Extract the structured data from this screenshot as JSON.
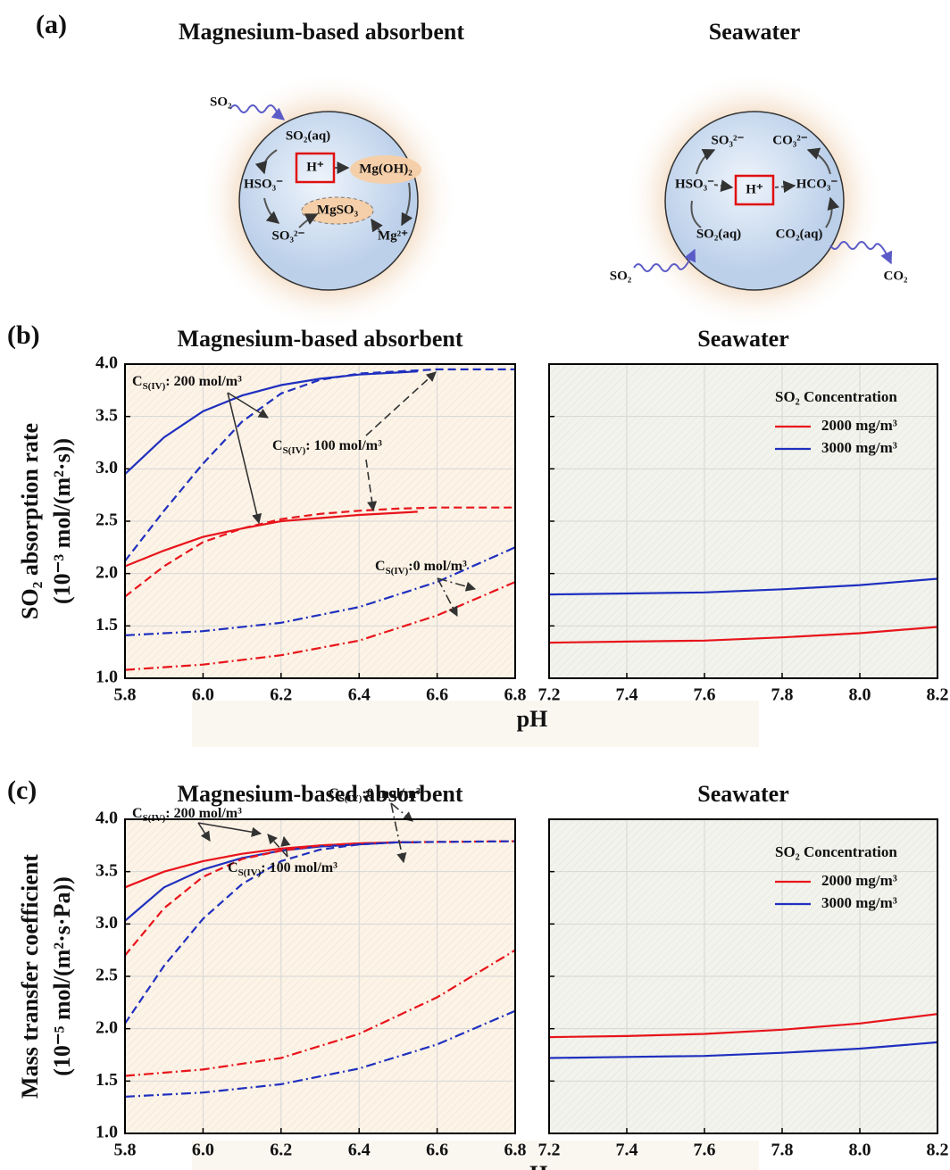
{
  "panel_a": {
    "label": "(a)",
    "left": {
      "title": "Magnesium-based absorbent",
      "labels": [
        "SO₂",
        "SO₂(aq)",
        "H⁺",
        "Mg(OH)₂",
        "HSO₃⁻",
        "MgSO₃",
        "SO₃²⁻",
        "Mg²⁺"
      ]
    },
    "right": {
      "title": "Seawater",
      "labels": [
        "SO₃²⁻",
        "CO₃²⁻",
        "HSO₃⁻",
        "H⁺",
        "HCO₃⁻",
        "SO₂(aq)",
        "CO₂(aq)",
        "SO₂",
        "CO₂"
      ]
    }
  },
  "chart_data": [
    {
      "type": "line",
      "panel_label": "(b)",
      "title": "Magnesium-based absorbent",
      "ylabel": [
        "SO₂ absorption rate",
        "(10⁻³ mol/(m²·s))"
      ],
      "xlabel": "pH",
      "grid": true,
      "background": "#fdf3e6",
      "xlim": [
        5.8,
        6.8
      ],
      "xticks": [
        5.8,
        {
          "value": 6,
          "label": "6.0"
        },
        6.2,
        6.4,
        6.6,
        6.8
      ],
      "ylim": [
        1,
        4
      ],
      "yticks": [
        {
          "value": 1,
          "label": "1.0"
        },
        1.5,
        {
          "value": 2,
          "label": "2.0"
        },
        2.5,
        {
          "value": 3,
          "label": "3.0"
        },
        3.5,
        {
          "value": 4,
          "label": "4.0"
        }
      ],
      "annotations": [
        {
          "symbol": "C",
          "subscript": "S(IV)",
          "text": ": 200 mol/m³"
        },
        {
          "symbol": "C",
          "subscript": "S(IV)",
          "text": ": 100 mol/m³"
        },
        {
          "symbol": "C",
          "subscript": "S(IV)",
          "text": ":0 mol/m³"
        }
      ],
      "series": [
        {
          "color": "#e8141b",
          "dash": "solid",
          "x": [
            5.8,
            5.9,
            6.0,
            6.1,
            6.2,
            6.3,
            6.4,
            6.5,
            6.55
          ],
          "values": [
            2.07,
            2.22,
            2.35,
            2.43,
            2.5,
            2.53,
            2.56,
            2.58,
            2.59
          ]
        },
        {
          "color": "#1f2fbf",
          "dash": "solid",
          "x": [
            5.8,
            5.9,
            6.0,
            6.1,
            6.2,
            6.3,
            6.4,
            6.5,
            6.55
          ],
          "values": [
            2.95,
            3.3,
            3.55,
            3.7,
            3.8,
            3.86,
            3.9,
            3.92,
            3.93
          ]
        },
        {
          "color": "#e8141b",
          "dash": "dashed",
          "x": [
            5.8,
            5.9,
            6.0,
            6.1,
            6.2,
            6.3,
            6.4,
            6.5,
            6.6,
            6.8
          ],
          "values": [
            1.78,
            2.07,
            2.3,
            2.43,
            2.52,
            2.57,
            2.6,
            2.62,
            2.63,
            2.63
          ]
        },
        {
          "color": "#1f2fbf",
          "dash": "dashed",
          "x": [
            5.8,
            5.9,
            6.0,
            6.1,
            6.2,
            6.3,
            6.4,
            6.5,
            6.6,
            6.8
          ],
          "values": [
            2.12,
            2.6,
            3.05,
            3.45,
            3.72,
            3.85,
            3.91,
            3.93,
            3.95,
            3.95
          ]
        },
        {
          "color": "#1f2fbf",
          "dash": "dashdot",
          "x": [
            5.8,
            6.0,
            6.2,
            6.4,
            6.6,
            6.8
          ],
          "values": [
            1.41,
            1.45,
            1.53,
            1.68,
            1.92,
            2.25
          ]
        },
        {
          "color": "#e8141b",
          "dash": "dashdot",
          "x": [
            5.8,
            6.0,
            6.2,
            6.4,
            6.6,
            6.8
          ],
          "values": [
            1.08,
            1.13,
            1.22,
            1.36,
            1.6,
            1.92
          ]
        }
      ]
    },
    {
      "type": "line",
      "title": "Seawater",
      "grid": true,
      "background": "#f1f3ec",
      "xlim": [
        7.2,
        8.2
      ],
      "xticks": [
        7.2,
        7.4,
        7.6,
        7.8,
        {
          "value": 8,
          "label": "8.0"
        },
        8.2
      ],
      "ylim": [
        1,
        4
      ],
      "yticks": [
        1,
        1.5,
        2,
        2.5,
        3,
        3.5,
        4
      ],
      "legend": {
        "title": "SO₂ Concentration",
        "position": "upper right"
      },
      "series": [
        {
          "name": "2000 mg/m³",
          "color": "#e8141b",
          "dash": "solid",
          "x": [
            7.2,
            7.4,
            7.6,
            7.8,
            8.0,
            8.2
          ],
          "values": [
            1.34,
            1.35,
            1.36,
            1.39,
            1.43,
            1.49
          ]
        },
        {
          "name": "3000 mg/m³",
          "color": "#1f2fbf",
          "dash": "solid",
          "x": [
            7.2,
            7.4,
            7.6,
            7.8,
            8.0,
            8.2
          ],
          "values": [
            1.8,
            1.81,
            1.82,
            1.85,
            1.89,
            1.95
          ]
        }
      ]
    },
    {
      "type": "line",
      "panel_label": "(c)",
      "title": "Magnesium-based absorbent",
      "ylabel": [
        "Mass transfer coefficient",
        "(10⁻⁵ mol/(m²·s·Pa))"
      ],
      "xlabel": "pH",
      "grid": true,
      "background": "#fdf3e6",
      "xlim": [
        5.8,
        6.8
      ],
      "xticks": [
        5.8,
        {
          "value": 6,
          "label": "6.0"
        },
        6.2,
        6.4,
        6.6,
        6.8
      ],
      "ylim": [
        1,
        4
      ],
      "yticks": [
        {
          "value": 1,
          "label": "1.0"
        },
        1.5,
        {
          "value": 2,
          "label": "2.0"
        },
        2.5,
        {
          "value": 3,
          "label": "3.0"
        },
        3.5,
        {
          "value": 4,
          "label": "4.0"
        }
      ],
      "annotations": [
        {
          "symbol": "C",
          "subscript": "S(IV)",
          "text": ": 200 mol/m³"
        },
        {
          "symbol": "C",
          "subscript": "S(IV)",
          "text": ": 100 mol/m³"
        },
        {
          "symbol": "C",
          "subscript": "S(IV)",
          "text": ":0 mol/m³"
        }
      ],
      "series": [
        {
          "color": "#e8141b",
          "dash": "solid",
          "x": [
            5.8,
            5.9,
            6.0,
            6.1,
            6.2,
            6.3,
            6.4,
            6.5,
            6.55
          ],
          "values": [
            3.35,
            3.5,
            3.6,
            3.67,
            3.72,
            3.75,
            3.77,
            3.78,
            3.78
          ]
        },
        {
          "color": "#1f2fbf",
          "dash": "solid",
          "x": [
            5.8,
            5.9,
            6.0,
            6.1,
            6.2,
            6.3,
            6.4,
            6.5,
            6.55
          ],
          "values": [
            3.03,
            3.35,
            3.52,
            3.63,
            3.7,
            3.74,
            3.76,
            3.78,
            3.78
          ]
        },
        {
          "color": "#e8141b",
          "dash": "dashed",
          "x": [
            5.8,
            5.9,
            6.0,
            6.1,
            6.2,
            6.3,
            6.4,
            6.5,
            6.8
          ],
          "values": [
            2.7,
            3.15,
            3.45,
            3.62,
            3.7,
            3.75,
            3.77,
            3.78,
            3.79
          ]
        },
        {
          "color": "#1f2fbf",
          "dash": "dashed",
          "x": [
            5.8,
            5.9,
            6.0,
            6.1,
            6.2,
            6.3,
            6.4,
            6.5,
            6.8
          ],
          "values": [
            2.05,
            2.6,
            3.05,
            3.38,
            3.6,
            3.71,
            3.76,
            3.78,
            3.79
          ]
        },
        {
          "color": "#e8141b",
          "dash": "dashdot",
          "x": [
            5.8,
            6.0,
            6.2,
            6.4,
            6.6,
            6.8
          ],
          "values": [
            1.55,
            1.61,
            1.72,
            1.95,
            2.3,
            2.75
          ]
        },
        {
          "color": "#1f2fbf",
          "dash": "dashdot",
          "x": [
            5.8,
            6.0,
            6.2,
            6.4,
            6.6,
            6.8
          ],
          "values": [
            1.35,
            1.39,
            1.47,
            1.62,
            1.85,
            2.17
          ]
        }
      ]
    },
    {
      "type": "line",
      "title": "Seawater",
      "grid": true,
      "background": "#f1f3ec",
      "xlim": [
        7.2,
        8.2
      ],
      "xticks": [
        7.2,
        7.4,
        7.6,
        7.8,
        {
          "value": 8,
          "label": "8.0"
        },
        8.2
      ],
      "ylim": [
        1,
        4
      ],
      "yticks": [
        1,
        1.5,
        2,
        2.5,
        3,
        3.5,
        4
      ],
      "legend": {
        "title": "SO₂ Concentration",
        "position": "upper right"
      },
      "series": [
        {
          "name": "2000 mg/m³",
          "color": "#e8141b",
          "dash": "solid",
          "x": [
            7.2,
            7.4,
            7.6,
            7.8,
            8.0,
            8.2
          ],
          "values": [
            1.92,
            1.93,
            1.95,
            1.99,
            2.05,
            2.14
          ]
        },
        {
          "name": "3000 mg/m³",
          "color": "#1f2fbf",
          "dash": "solid",
          "x": [
            7.2,
            7.4,
            7.6,
            7.8,
            8.0,
            8.2
          ],
          "values": [
            1.72,
            1.73,
            1.74,
            1.77,
            1.81,
            1.87
          ]
        }
      ]
    }
  ]
}
